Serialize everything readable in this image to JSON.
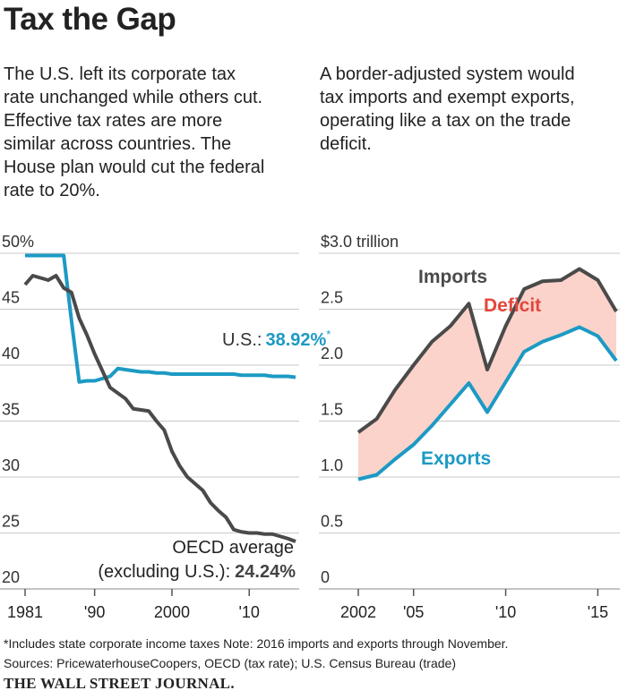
{
  "title": "Tax the Gap",
  "chart_data": [
    {
      "type": "line",
      "subtitle": [
        "The U.S. left its corporate tax",
        "rate unchanged while others cut.",
        "Effective tax rates are more",
        "similar across countries. The",
        "House plan would cut the federal",
        "rate to 20%."
      ],
      "x": [
        1981,
        1982,
        1983,
        1984,
        1985,
        1986,
        1987,
        1988,
        1989,
        1990,
        1991,
        1992,
        1993,
        1994,
        1995,
        1996,
        1997,
        1998,
        1999,
        2000,
        2001,
        2002,
        2003,
        2004,
        2005,
        2006,
        2007,
        2008,
        2009,
        2010,
        2011,
        2012,
        2013,
        2014,
        2015,
        2016
      ],
      "series": [
        {
          "name": "U.S.:",
          "color": "#1c9ac4",
          "values": [
            49.8,
            49.8,
            49.8,
            49.8,
            49.8,
            49.8,
            44.0,
            38.5,
            38.6,
            38.6,
            38.8,
            39.0,
            39.7,
            39.6,
            39.5,
            39.4,
            39.4,
            39.3,
            39.3,
            39.2,
            39.2,
            39.2,
            39.2,
            39.2,
            39.2,
            39.2,
            39.2,
            39.2,
            39.1,
            39.1,
            39.1,
            39.1,
            39.0,
            39.0,
            39.0,
            38.92
          ],
          "value_labels": [
            null,
            null,
            null,
            null,
            null,
            null,
            null,
            null,
            null,
            null,
            null,
            null,
            null,
            null,
            null,
            null,
            null,
            null,
            null,
            null,
            null,
            null,
            null,
            null,
            null,
            null,
            null,
            null,
            null,
            null,
            null,
            null,
            null,
            null,
            null,
            "38.92%"
          ],
          "note_mark": "*"
        },
        {
          "name": "OECD average",
          "name_line2": "(excluding U.S.):",
          "color": "#4a4a4a",
          "values": [
            47.2,
            48.0,
            47.8,
            47.6,
            48.0,
            46.9,
            46.5,
            44.2,
            42.7,
            41.0,
            39.5,
            38.0,
            37.5,
            37.0,
            36.1,
            36.0,
            35.9,
            35.0,
            34.2,
            32.3,
            31.0,
            30.0,
            29.4,
            28.8,
            27.7,
            27.0,
            26.4,
            25.3,
            25.1,
            25.0,
            25.0,
            24.9,
            24.9,
            24.7,
            24.5,
            24.24
          ],
          "value_labels": [
            null,
            null,
            null,
            null,
            null,
            null,
            null,
            null,
            null,
            null,
            null,
            null,
            null,
            null,
            null,
            null,
            null,
            null,
            null,
            null,
            null,
            null,
            null,
            null,
            null,
            null,
            null,
            null,
            null,
            null,
            null,
            null,
            null,
            null,
            null,
            "24.24%"
          ]
        }
      ],
      "xlim": [
        1981,
        2016
      ],
      "xticks": [
        1981,
        {
          "value": 1990,
          "label": "'90"
        },
        2000,
        {
          "value": 2010,
          "label": "'10"
        }
      ],
      "ylim": [
        20,
        50
      ],
      "yticks": [
        {
          "value": 50,
          "label": "50%"
        },
        45,
        40,
        35,
        30,
        25,
        20
      ],
      "grid": true
    },
    {
      "type": "line",
      "subtitle": [
        "A border-adjusted system would",
        "tax imports and exempt exports,",
        "operating like a tax on the trade",
        "deficit."
      ],
      "x": [
        2002,
        2003,
        2004,
        2005,
        2006,
        2007,
        2008,
        2009,
        2010,
        2011,
        2012,
        2013,
        2014,
        2015,
        2016
      ],
      "series": [
        {
          "name": "Imports",
          "color": "#4a4a4a",
          "values": [
            1.4,
            1.52,
            1.78,
            2.0,
            2.21,
            2.35,
            2.55,
            1.96,
            2.35,
            2.68,
            2.75,
            2.76,
            2.86,
            2.76,
            2.48
          ]
        },
        {
          "name": "Exports",
          "color": "#1c9ac4",
          "values": [
            0.98,
            1.02,
            1.16,
            1.29,
            1.46,
            1.65,
            1.84,
            1.58,
            1.85,
            2.12,
            2.21,
            2.27,
            2.34,
            2.26,
            2.04
          ]
        }
      ],
      "area": {
        "label": "Deficit",
        "color": "#fbd3ca",
        "label_color": "#e5453a"
      },
      "xlim": [
        2002,
        2016
      ],
      "xticks": [
        2002,
        {
          "value": 2005,
          "label": "'05"
        },
        {
          "value": 2010,
          "label": "'10"
        },
        {
          "value": 2015,
          "label": "'15"
        }
      ],
      "ylim": [
        0,
        3
      ],
      "yticks": [
        {
          "value": 3,
          "label": "$3.0 trillion"
        },
        2.5,
        {
          "value": 2,
          "label": "2.0"
        },
        1.5,
        {
          "value": 1,
          "label": "1.0"
        },
        0.5,
        0
      ],
      "grid": true
    }
  ],
  "notes": [
    "*Includes state corporate income taxes    Note: 2016 imports and exports through November.",
    "Sources: PricewaterhouseCoopers, OECD (tax rate); U.S. Census Bureau (trade)"
  ],
  "source": "THE WALL STREET JOURNAL."
}
